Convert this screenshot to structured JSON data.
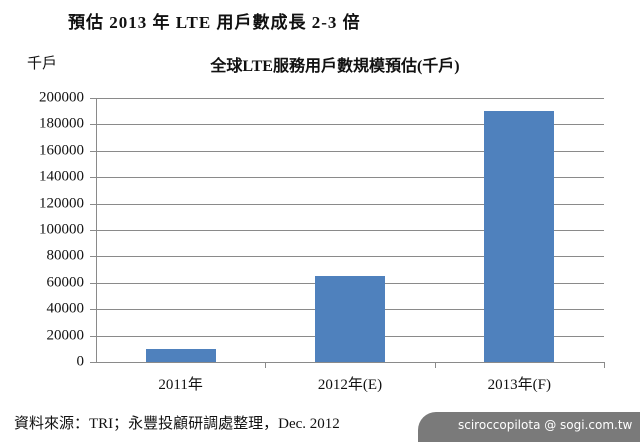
{
  "header": {
    "title": "預估 2013 年 LTE 用戶數成長 2-3 倍",
    "unit_label": "千戶",
    "chart_title": "全球LTE服務用戶數規模預估(千戶)"
  },
  "footer": {
    "source": "資料來源：TRI；永豐投顧研調處整理，Dec. 2012",
    "watermark": "sciroccopilota  @ sogi.com.tw"
  },
  "colors": {
    "bar": "#4f81bd",
    "grid": "#8a8a8a"
  },
  "chart_data": {
    "type": "bar",
    "title": "全球LTE服務用戶數規模預估(千戶)",
    "xlabel": "",
    "ylabel": "千戶",
    "categories": [
      "2011年",
      "2012年(E)",
      "2013年(F)"
    ],
    "values": [
      10000,
      65000,
      190000
    ],
    "ylim": [
      0,
      200000
    ],
    "yticks": [
      "200000",
      "180000",
      "160000",
      "140000",
      "120000",
      "100000",
      "80000",
      "60000",
      "40000",
      "20000",
      "0"
    ],
    "grid": true,
    "legend": null
  }
}
